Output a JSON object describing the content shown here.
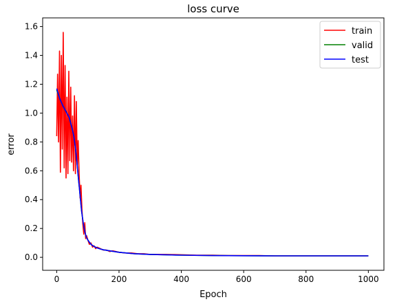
{
  "chart_data": {
    "type": "line",
    "title": "loss curve",
    "xlabel": "Epoch",
    "ylabel": "error",
    "xlim": [
      -45,
      1050
    ],
    "ylim": [
      -0.09,
      1.66
    ],
    "xticks": [
      0,
      200,
      400,
      600,
      800,
      1000
    ],
    "yticks": [
      0.0,
      0.2,
      0.4,
      0.6,
      0.8,
      1.0,
      1.2,
      1.4,
      1.6
    ],
    "legend_position": "top-right",
    "grid": false,
    "series": [
      {
        "name": "train",
        "color": "#ff0000",
        "x": [
          0,
          3,
          6,
          9,
          12,
          15,
          18,
          21,
          24,
          27,
          30,
          33,
          36,
          39,
          42,
          45,
          48,
          51,
          54,
          57,
          60,
          63,
          66,
          69,
          72,
          75,
          78,
          81,
          84,
          87,
          90,
          93,
          96,
          100,
          105,
          110,
          115,
          120,
          125,
          130,
          140,
          150,
          160,
          170,
          180,
          190,
          200,
          220,
          240,
          260,
          280,
          300,
          350,
          400,
          450,
          500,
          550,
          600,
          650,
          700,
          750,
          800,
          850,
          900,
          950,
          1000
        ],
        "values": [
          0.84,
          1.27,
          0.8,
          1.43,
          0.59,
          1.4,
          0.75,
          1.56,
          0.62,
          1.33,
          0.55,
          1.11,
          0.58,
          1.29,
          0.67,
          1.18,
          0.66,
          0.98,
          0.6,
          1.12,
          0.58,
          1.08,
          0.63,
          0.81,
          0.58,
          0.41,
          0.5,
          0.33,
          0.23,
          0.16,
          0.24,
          0.13,
          0.15,
          0.12,
          0.09,
          0.1,
          0.07,
          0.08,
          0.06,
          0.07,
          0.06,
          0.05,
          0.05,
          0.04,
          0.045,
          0.04,
          0.035,
          0.03,
          0.03,
          0.025,
          0.025,
          0.02,
          0.02,
          0.018,
          0.015,
          0.015,
          0.012,
          0.012,
          0.012,
          0.01,
          0.01,
          0.01,
          0.01,
          0.01,
          0.01,
          0.01
        ]
      },
      {
        "name": "valid",
        "color": "#008000",
        "x": [
          0,
          10,
          20,
          30,
          40,
          50,
          55,
          60,
          65,
          70,
          75,
          80,
          85,
          90,
          95,
          100,
          110,
          120,
          130,
          140,
          150,
          170,
          200,
          250,
          300,
          400,
          500,
          600,
          700,
          800,
          900,
          1000
        ],
        "values": [
          1.16,
          1.1,
          1.05,
          1.01,
          0.97,
          0.89,
          0.84,
          0.76,
          0.66,
          0.54,
          0.43,
          0.32,
          0.24,
          0.18,
          0.14,
          0.12,
          0.09,
          0.075,
          0.065,
          0.058,
          0.052,
          0.045,
          0.035,
          0.025,
          0.02,
          0.015,
          0.012,
          0.011,
          0.01,
          0.01,
          0.01,
          0.01
        ]
      },
      {
        "name": "test",
        "color": "#0000ff",
        "x": [
          0,
          10,
          20,
          30,
          40,
          50,
          55,
          60,
          65,
          70,
          75,
          80,
          85,
          90,
          95,
          100,
          110,
          120,
          130,
          140,
          150,
          170,
          200,
          250,
          300,
          400,
          500,
          600,
          700,
          800,
          900,
          1000
        ],
        "values": [
          1.17,
          1.1,
          1.05,
          1.01,
          0.97,
          0.89,
          0.84,
          0.76,
          0.66,
          0.54,
          0.43,
          0.32,
          0.24,
          0.18,
          0.14,
          0.12,
          0.09,
          0.075,
          0.065,
          0.058,
          0.052,
          0.045,
          0.035,
          0.025,
          0.02,
          0.015,
          0.012,
          0.011,
          0.01,
          0.01,
          0.01,
          0.01
        ]
      }
    ]
  }
}
